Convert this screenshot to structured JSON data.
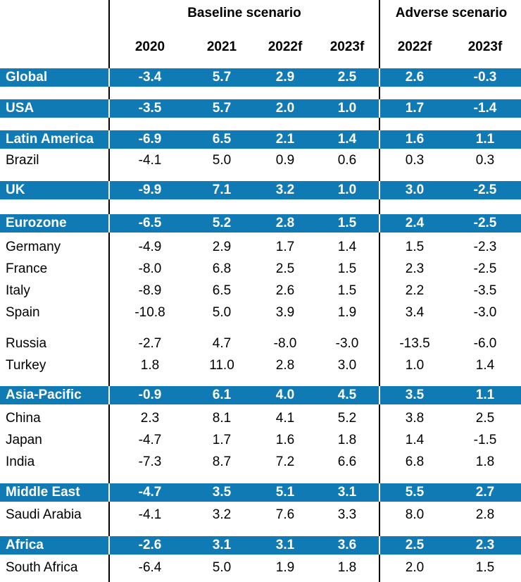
{
  "header": {
    "baseline": "Baseline scenario",
    "adverse": "Adverse scenario",
    "years": [
      "2020",
      "2021",
      "2022f",
      "2023f",
      "2022f",
      "2023f"
    ]
  },
  "colors": {
    "highlight": "#0f7ab3"
  },
  "chart_data": {
    "type": "table",
    "columns": [
      "2020",
      "2021",
      "2022f",
      "2023f",
      "2022f",
      "2023f"
    ],
    "column_groups": [
      {
        "label": "Baseline scenario",
        "columns": [
          "2020",
          "2021",
          "2022f",
          "2023f"
        ]
      },
      {
        "label": "Adverse scenario",
        "columns": [
          "2022f",
          "2023f"
        ]
      }
    ],
    "rows": [
      {
        "name": "Global",
        "highlight": true,
        "values": [
          "-3.4",
          "5.7",
          "2.9",
          "2.5",
          "2.6",
          "-0.3"
        ]
      },
      {
        "name": "USA",
        "highlight": true,
        "values": [
          "-3.5",
          "5.7",
          "2.0",
          "1.0",
          "1.7",
          "-1.4"
        ]
      },
      {
        "name": "Latin America",
        "highlight": true,
        "values": [
          "-6.9",
          "6.5",
          "2.1",
          "1.4",
          "1.6",
          "1.1"
        ]
      },
      {
        "name": "Brazil",
        "highlight": false,
        "values": [
          "-4.1",
          "5.0",
          "0.9",
          "0.6",
          "0.3",
          "0.3"
        ]
      },
      {
        "name": "UK",
        "highlight": true,
        "values": [
          "-9.9",
          "7.1",
          "3.2",
          "1.0",
          "3.0",
          "-2.5"
        ]
      },
      {
        "name": "Eurozone",
        "highlight": true,
        "values": [
          "-6.5",
          "5.2",
          "2.8",
          "1.5",
          "2.4",
          "-2.5"
        ]
      },
      {
        "name": "Germany",
        "highlight": false,
        "values": [
          "-4.9",
          "2.9",
          "1.7",
          "1.4",
          "1.5",
          "-2.3"
        ]
      },
      {
        "name": "France",
        "highlight": false,
        "values": [
          "-8.0",
          "6.8",
          "2.5",
          "1.5",
          "2.3",
          "-2.5"
        ]
      },
      {
        "name": "Italy",
        "highlight": false,
        "values": [
          "-8.9",
          "6.5",
          "2.6",
          "1.5",
          "2.2",
          "-3.5"
        ]
      },
      {
        "name": "Spain",
        "highlight": false,
        "values": [
          "-10.8",
          "5.0",
          "3.9",
          "1.9",
          "3.4",
          "-3.0"
        ]
      },
      {
        "name": "Russia",
        "highlight": false,
        "values": [
          "-2.7",
          "4.7",
          "-8.0",
          "-3.0",
          "-13.5",
          "-6.0"
        ]
      },
      {
        "name": "Turkey",
        "highlight": false,
        "values": [
          "1.8",
          "11.0",
          "2.8",
          "3.0",
          "1.0",
          "1.4"
        ]
      },
      {
        "name": "Asia-Pacific",
        "highlight": true,
        "values": [
          "-0.9",
          "6.1",
          "4.0",
          "4.5",
          "3.5",
          "1.1"
        ]
      },
      {
        "name": "China",
        "highlight": false,
        "values": [
          "2.3",
          "8.1",
          "4.1",
          "5.2",
          "3.8",
          "2.5"
        ]
      },
      {
        "name": "Japan",
        "highlight": false,
        "values": [
          "-4.7",
          "1.7",
          "1.6",
          "1.8",
          "1.4",
          "-1.5"
        ]
      },
      {
        "name": "India",
        "highlight": false,
        "values": [
          "-7.3",
          "8.7",
          "7.2",
          "6.6",
          "6.8",
          "1.8"
        ]
      },
      {
        "name": "Middle East",
        "highlight": true,
        "values": [
          "-4.7",
          "3.5",
          "5.1",
          "3.1",
          "5.5",
          "2.7"
        ]
      },
      {
        "name": "Saudi Arabia",
        "highlight": false,
        "values": [
          "-4.1",
          "3.2",
          "7.6",
          "3.3",
          "8.0",
          "2.8"
        ]
      },
      {
        "name": "Africa",
        "highlight": true,
        "values": [
          "-2.6",
          "3.1",
          "3.1",
          "3.6",
          "2.5",
          "2.3"
        ]
      },
      {
        "name": "South Africa",
        "highlight": false,
        "values": [
          "-6.4",
          "5.0",
          "1.9",
          "1.8",
          "2.0",
          "1.5"
        ]
      }
    ]
  }
}
